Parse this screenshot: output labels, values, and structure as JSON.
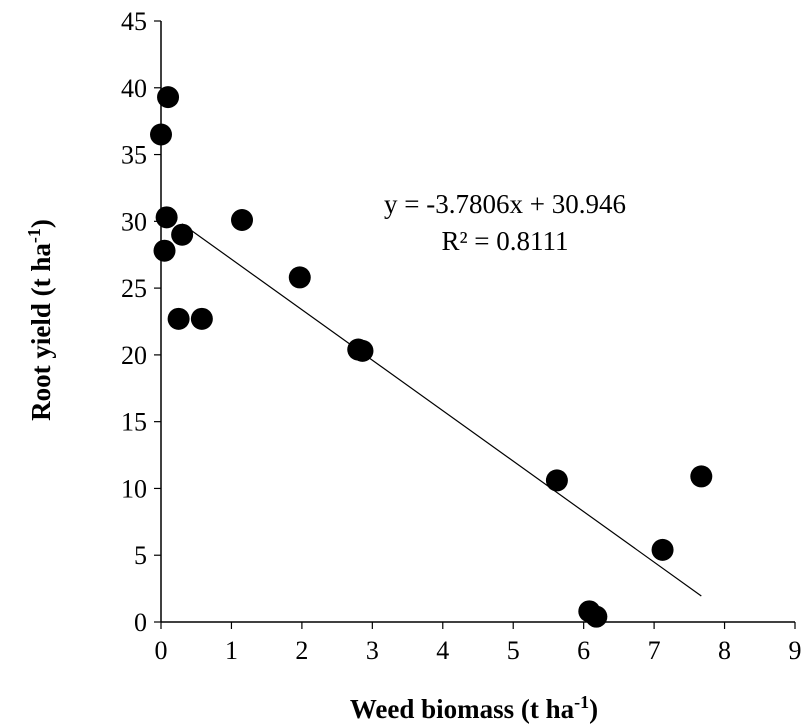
{
  "chart_data": {
    "type": "scatter",
    "xlabel": "Weed biomass (t ha",
    "xlabel_sup": "-1",
    "xlabel_end": ")",
    "ylabel": "Root yield (t ha",
    "ylabel_sup": "-1",
    "ylabel_end": ")",
    "xlim": [
      0,
      9
    ],
    "ylim": [
      0,
      45
    ],
    "xticks": [
      "0",
      "1",
      "2",
      "3",
      "4",
      "5",
      "6",
      "7",
      "8",
      "9"
    ],
    "yticks": [
      "0",
      "5",
      "10",
      "15",
      "20",
      "25",
      "30",
      "35",
      "40",
      "45"
    ],
    "grid": false,
    "legend": "none",
    "marker_color": "#000000",
    "points": [
      {
        "x": 0.0,
        "y": 36.5
      },
      {
        "x": 0.1,
        "y": 39.3
      },
      {
        "x": 0.08,
        "y": 30.3
      },
      {
        "x": 0.05,
        "y": 27.8
      },
      {
        "x": 0.3,
        "y": 29.0
      },
      {
        "x": 0.25,
        "y": 22.7
      },
      {
        "x": 0.58,
        "y": 22.7
      },
      {
        "x": 1.15,
        "y": 30.1
      },
      {
        "x": 1.97,
        "y": 25.8
      },
      {
        "x": 2.8,
        "y": 20.4
      },
      {
        "x": 2.86,
        "y": 20.3
      },
      {
        "x": 5.62,
        "y": 10.6
      },
      {
        "x": 6.08,
        "y": 0.8
      },
      {
        "x": 6.18,
        "y": 0.4
      },
      {
        "x": 7.12,
        "y": 5.4
      },
      {
        "x": 7.67,
        "y": 10.9
      }
    ],
    "trendline": {
      "type": "linear",
      "slope": -3.7806,
      "intercept": 30.946,
      "x_range": [
        0.3,
        7.67
      ],
      "equation": "y = -3.7806x + 30.946",
      "r_squared": "R² = 0.8111"
    }
  }
}
